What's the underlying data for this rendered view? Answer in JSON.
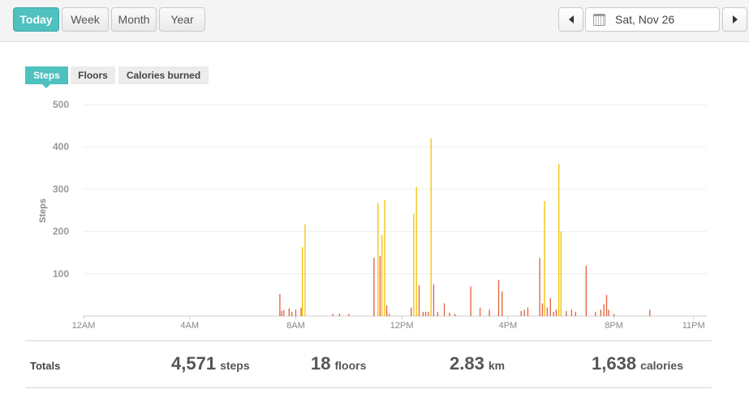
{
  "range_tabs": [
    {
      "label": "Today",
      "active": true
    },
    {
      "label": "Week",
      "active": false
    },
    {
      "label": "Month",
      "active": false
    },
    {
      "label": "Year",
      "active": false
    }
  ],
  "date_nav": {
    "date": "Sat, Nov 26",
    "prev_icon": "triangle-left-icon",
    "next_icon": "triangle-right-icon",
    "calendar_icon": "calendar-icon"
  },
  "metric_tabs": [
    {
      "label": "Steps",
      "active": true
    },
    {
      "label": "Floors",
      "active": false
    },
    {
      "label": "Calories burned",
      "active": false
    }
  ],
  "colors": {
    "accent": "#4fc1bf",
    "bar_low": "#e2603a",
    "bar_high": "#f2c200"
  },
  "chart_data": {
    "type": "bar",
    "ylabel": "Steps",
    "ylim": [
      0,
      500
    ],
    "yticks": [
      100,
      200,
      300,
      400,
      500
    ],
    "x_unit": "hour of day",
    "xlim": [
      0,
      23.5
    ],
    "xticks": [
      {
        "label": "12AM",
        "hour": 0
      },
      {
        "label": "4AM",
        "hour": 4
      },
      {
        "label": "8AM",
        "hour": 8
      },
      {
        "label": "12PM",
        "hour": 12
      },
      {
        "label": "4PM",
        "hour": 16
      },
      {
        "label": "8PM",
        "hour": 20
      },
      {
        "label": "11PM",
        "hour": 23
      }
    ],
    "hours": [
      7.4,
      7.47,
      7.55,
      7.75,
      7.85,
      8.0,
      8.2,
      8.25,
      8.35,
      9.4,
      9.65,
      10.0,
      10.95,
      11.1,
      11.18,
      11.25,
      11.35,
      11.43,
      11.52,
      12.35,
      12.45,
      12.55,
      12.65,
      12.8,
      12.9,
      13.0,
      13.1,
      13.2,
      13.35,
      13.6,
      13.8,
      14.0,
      14.6,
      14.95,
      15.3,
      15.65,
      15.78,
      16.5,
      16.62,
      16.75,
      17.2,
      17.3,
      17.38,
      17.48,
      17.6,
      17.72,
      17.82,
      17.92,
      18.0,
      18.2,
      18.4,
      18.55,
      18.95,
      19.3,
      19.5,
      19.62,
      19.72,
      19.8,
      20.0,
      21.35
    ],
    "values": [
      52,
      12,
      14,
      18,
      10,
      15,
      20,
      163,
      217,
      5,
      6,
      5,
      138,
      267,
      142,
      192,
      274,
      25,
      5,
      20,
      242,
      305,
      73,
      10,
      10,
      10,
      420,
      75,
      10,
      30,
      8,
      5,
      70,
      20,
      15,
      85,
      58,
      12,
      15,
      20,
      137,
      30,
      272,
      20,
      42,
      10,
      15,
      360,
      200,
      12,
      15,
      10,
      119,
      10,
      15,
      28,
      50,
      15,
      5,
      15
    ]
  },
  "totals": {
    "label": "Totals",
    "steps": {
      "value": "4,571",
      "unit": "steps"
    },
    "floors": {
      "value": "18",
      "unit": "floors"
    },
    "distance": {
      "value": "2.83",
      "unit": "km"
    },
    "calories": {
      "value": "1,638",
      "unit": "calories"
    }
  }
}
